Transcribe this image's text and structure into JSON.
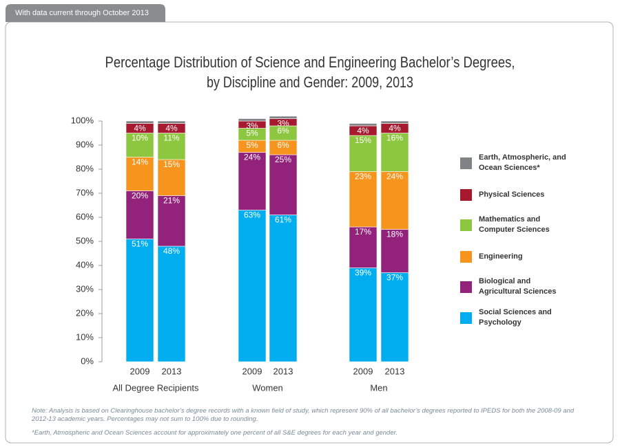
{
  "tag": "With data current through October 2013",
  "chart_data": {
    "type": "stacked-bar",
    "title": "Percentage Distribution of Science and Engineering Bachelor’s Degrees,",
    "subtitle": "by Discipline and Gender: 2009, 2013",
    "categories": [
      "2009",
      "2013",
      "2009",
      "2013",
      "2009",
      "2013"
    ],
    "groups": [
      "All Degree Recipients",
      "Women",
      "Men"
    ],
    "ylim": [
      0,
      100
    ],
    "yticks": [
      {
        "value": 0,
        "label": "0%"
      },
      {
        "value": 10,
        "label": "10%"
      },
      {
        "value": 20,
        "label": "20%"
      },
      {
        "value": 30,
        "label": "30%"
      },
      {
        "value": 40,
        "label": "40%"
      },
      {
        "value": 50,
        "label": "50%"
      },
      {
        "value": 60,
        "label": "60%"
      },
      {
        "value": 70,
        "label": "70%"
      },
      {
        "value": 80,
        "label": "80%"
      },
      {
        "value": 90,
        "label": "90%"
      },
      {
        "value": 100,
        "label": "100%"
      }
    ],
    "series": [
      {
        "name": "Social Sciences and Psychology",
        "color": "#00aeef",
        "values": [
          51,
          48,
          63,
          61,
          39,
          37
        ],
        "value_labels": [
          "51%",
          "48%",
          "63%",
          "61%",
          "39%",
          "37%"
        ]
      },
      {
        "name": "Biological and Agricultural Sciences",
        "color": "#93227a",
        "values": [
          20,
          21,
          24,
          25,
          17,
          18
        ],
        "value_labels": [
          "20%",
          "21%",
          "24%",
          "25%",
          "17%",
          "18%"
        ]
      },
      {
        "name": "Engineering",
        "color": "#f7941d",
        "values": [
          14,
          15,
          5,
          6,
          23,
          24
        ],
        "value_labels": [
          "14%",
          "15%",
          "5%",
          "6%",
          "23%",
          "24%"
        ]
      },
      {
        "name": "Mathematics and Computer Sciences",
        "color": "#8dc63f",
        "values": [
          10,
          11,
          5,
          6,
          15,
          16
        ],
        "value_labels": [
          "10%",
          "11%",
          "5%",
          "6%",
          "15%",
          "16%"
        ]
      },
      {
        "name": "Physical Sciences",
        "color": "#a6192e",
        "values": [
          4,
          4,
          3,
          3,
          4,
          4
        ],
        "value_labels": [
          "4%",
          "4%",
          "3%",
          "3%",
          "4%",
          "4%"
        ]
      },
      {
        "name": "Earth, Atmospheric, and Ocean Sciences*",
        "color": "#808285",
        "values": [
          1,
          1,
          1,
          1,
          1,
          1
        ]
      }
    ],
    "note": "Note: Analysis is based on Clearinghouse bachelor’s degree records with a known field of study, which represent 90% of all bachelor’s degrees reported to IPEDS for both the 2008-09 and 2012-13 academic years. Percentages may not sum to 100% due to rounding.",
    "footnote": "*Earth, Atmospheric and Ocean Sciences account for approximately one percent of all S&E degrees for each year and gender."
  }
}
